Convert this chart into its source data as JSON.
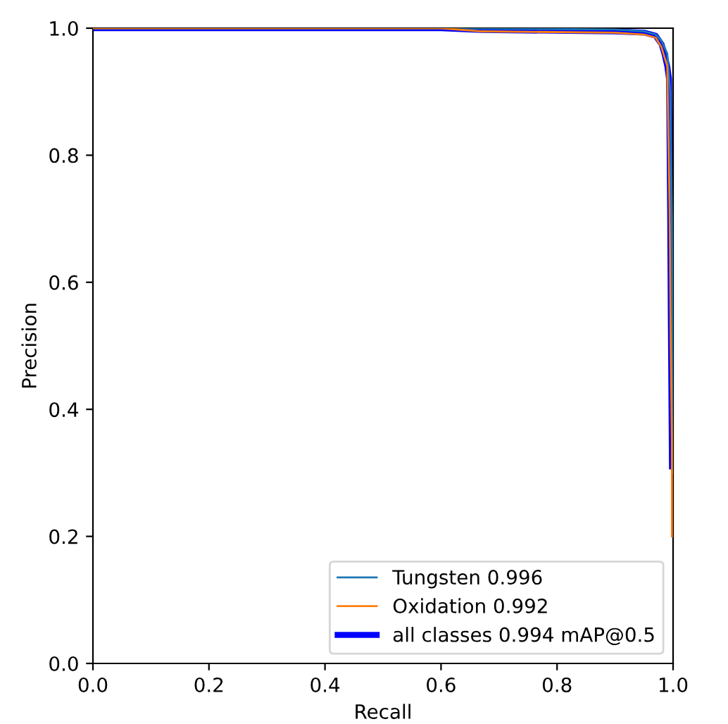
{
  "chart_data": {
    "type": "line",
    "xlabel": "Recall",
    "ylabel": "Precision",
    "xlim": [
      0,
      1
    ],
    "ylim": [
      0,
      1
    ],
    "xticks": [
      {
        "value": 0,
        "label": "0.0"
      },
      0.2,
      0.4,
      0.6,
      0.8,
      {
        "value": 1,
        "label": "1.0"
      }
    ],
    "yticks": [
      {
        "value": 0,
        "label": "0.0"
      },
      0.2,
      0.4,
      0.6,
      0.8,
      {
        "value": 1,
        "label": "1.0"
      }
    ],
    "legend": "bottom right",
    "grid": false,
    "series": [
      {
        "name": "Tungsten 0.996",
        "color": "#1f77b4",
        "x": [
          0,
          0.6,
          0.9,
          0.95,
          0.97,
          0.98,
          0.99,
          0.995,
          0.998,
          1.0
        ],
        "values": [
          1,
          1,
          0.998,
          0.995,
          0.99,
          0.98,
          0.96,
          0.9,
          0.7,
          0.3
        ]
      },
      {
        "name": "Oxidation 0.992",
        "color": "#ff7f0e",
        "x": [
          0,
          0.6,
          0.67,
          0.9,
          0.95,
          0.97,
          0.98,
          0.99,
          0.991,
          0.994,
          0.996,
          0.998,
          0.998
        ],
        "values": [
          1,
          1,
          0.995,
          0.993,
          0.99,
          0.985,
          0.97,
          0.94,
          0.88,
          0.72,
          0.5,
          0.35,
          0.2
        ]
      },
      {
        "name": "all classes 0.994 mAP@0.5",
        "color": "#0000ff",
        "x": [
          0,
          0.6,
          0.67,
          0.9,
          0.95,
          0.97,
          0.98,
          0.985,
          0.99,
          0.993,
          0.995,
          0.996,
          0.998
        ],
        "values": [
          1,
          1,
          0.997,
          0.995,
          0.993,
          0.988,
          0.975,
          0.96,
          0.94,
          0.92,
          0.7,
          0.55,
          0.31
        ]
      }
    ]
  }
}
